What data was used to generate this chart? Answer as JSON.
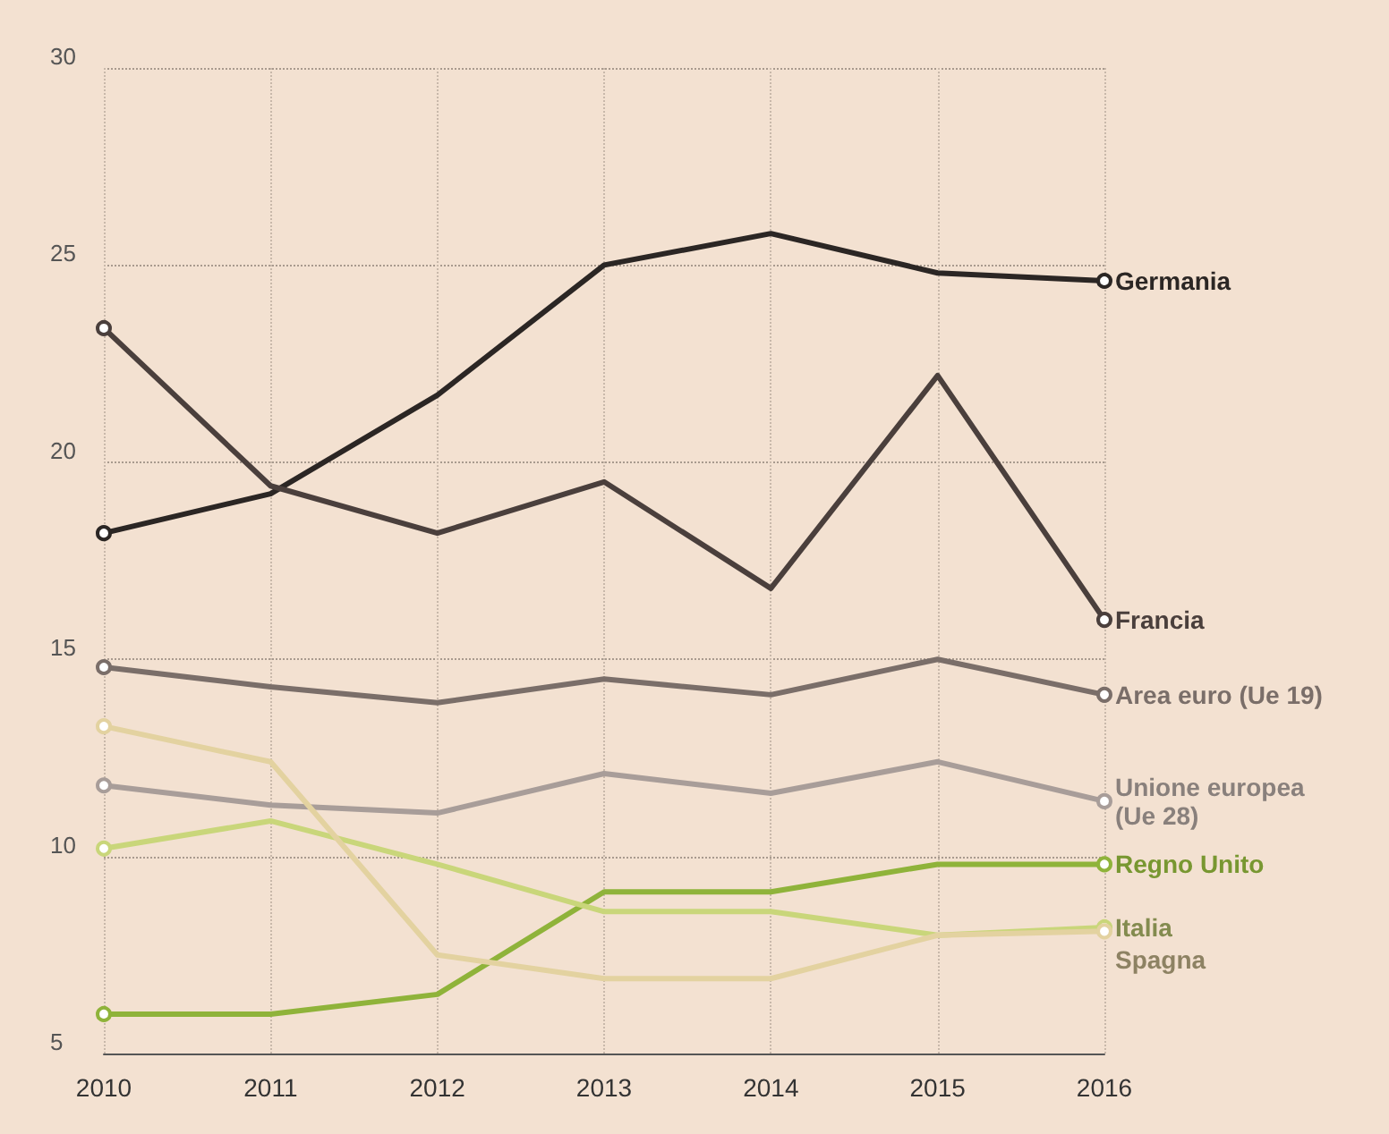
{
  "chart_data": {
    "type": "line",
    "categories": [
      "2010",
      "2011",
      "2012",
      "2013",
      "2014",
      "2015",
      "2016"
    ],
    "ylim": [
      5,
      30
    ],
    "yticks": [
      5,
      10,
      15,
      20,
      25,
      30
    ],
    "grid": true,
    "legend": false,
    "line_style": "solid",
    "series": [
      {
        "name": "Germania",
        "color": "#2b2624",
        "values": [
          18.2,
          19.2,
          21.7,
          25.0,
          25.8,
          24.8,
          24.6
        ]
      },
      {
        "name": "Francia",
        "color": "#4a3f3c",
        "values": [
          23.4,
          19.4,
          18.2,
          19.5,
          16.8,
          22.2,
          16.0
        ]
      },
      {
        "name": "Area euro (Ue 19)",
        "color": "#7a6e69",
        "values": [
          14.8,
          14.3,
          13.9,
          14.5,
          14.1,
          15.0,
          14.1
        ]
      },
      {
        "name": "Unione europea (Ue 28)",
        "color": "#a89d99",
        "values": [
          11.8,
          11.3,
          11.1,
          12.1,
          11.6,
          12.4,
          11.4
        ]
      },
      {
        "name": "Regno Unito",
        "color": "#8fb33a",
        "values": [
          6.0,
          6.0,
          6.5,
          9.1,
          9.1,
          9.8,
          9.8
        ]
      },
      {
        "name": "Italia",
        "color": "#c9d67a",
        "values": [
          10.2,
          10.9,
          9.8,
          8.6,
          8.6,
          8.0,
          8.2
        ]
      },
      {
        "name": "Spagna",
        "color": "#e3d2a0",
        "values": [
          13.3,
          12.4,
          7.5,
          6.9,
          6.9,
          8.0,
          8.1
        ]
      }
    ]
  }
}
